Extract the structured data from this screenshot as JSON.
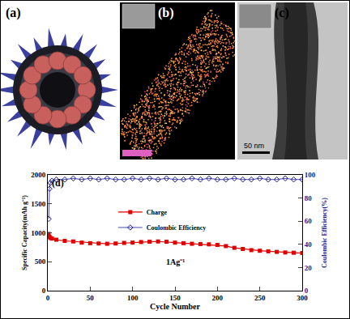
{
  "panels": [
    {
      "label": "(a)"
    },
    {
      "label": "(b)"
    },
    {
      "label": "(c)",
      "scale_bar": "50 nm"
    }
  ],
  "chart_data": {
    "type": "line",
    "annotations": [
      "(d)",
      "1Ag⁻¹"
    ],
    "xlabel": "Cycle Number",
    "ylabel": "Specific Capacity(mAh g⁻¹)",
    "y2label": "Coulombic Efficiency(%)",
    "x": [
      1,
      2,
      3,
      5,
      10,
      20,
      30,
      40,
      50,
      60,
      70,
      80,
      90,
      100,
      110,
      120,
      130,
      140,
      150,
      160,
      170,
      180,
      190,
      200,
      210,
      220,
      230,
      240,
      250,
      260,
      270,
      280,
      290,
      300
    ],
    "series": [
      {
        "name": "Charge",
        "color": "#e00000",
        "marker": "square",
        "values": [
          980,
          930,
          910,
          900,
          880,
          860,
          850,
          830,
          820,
          815,
          810,
          815,
          825,
          830,
          840,
          845,
          850,
          845,
          830,
          820,
          810,
          805,
          800,
          790,
          770,
          740,
          720,
          700,
          690,
          680,
          670,
          660,
          655,
          650
        ]
      },
      {
        "name": "Coulombic Efficiency",
        "color": "#1a1aa0",
        "marker": "diamond-open",
        "axis": "y2",
        "values": [
          62,
          88,
          93,
          95,
          96,
          96,
          97,
          96,
          97,
          96,
          97,
          96,
          96,
          97,
          96,
          97,
          96,
          97,
          96,
          96,
          97,
          96,
          97,
          96,
          96,
          97,
          96,
          96,
          97,
          96,
          96,
          97,
          96,
          96
        ]
      }
    ],
    "xlim": [
      0,
      300
    ],
    "xticks": [
      0,
      50,
      100,
      150,
      200,
      250,
      300
    ],
    "ylim": [
      0,
      2000
    ],
    "yticks": [
      0,
      500,
      1000,
      1500,
      2000
    ],
    "y2lim": [
      0,
      100
    ],
    "y2ticks": [
      0,
      20,
      40,
      60,
      80,
      100
    ],
    "legend": "upper center",
    "grid": false
  }
}
